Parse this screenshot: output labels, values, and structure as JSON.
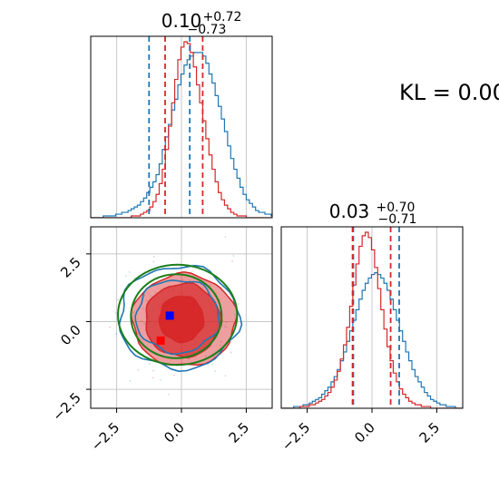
{
  "colors": {
    "series_a": "#1f77b4",
    "series_b": "#d62728",
    "overlay": "#1a7f1a",
    "marker_blue": "#0000ff",
    "marker_red": "#ff0000",
    "grid": "#c8c8c8"
  },
  "chart_data": [
    {
      "type": "histogram",
      "panel": "top-left marginal (param 1)",
      "title": {
        "value": "0.10",
        "plus": "+0.72",
        "minus": "−0.73"
      },
      "xlim": [
        -3.5,
        3.5
      ],
      "grid": true,
      "series": [
        {
          "color": "blue",
          "quantile_lines": [
            -1.25,
            0.32
          ],
          "bin_edges_start": -3.5,
          "bin_width": 0.12,
          "counts": [
            0,
            0,
            0,
            0,
            1,
            1,
            1,
            1,
            2,
            2,
            3,
            3,
            4,
            5,
            6,
            7,
            9,
            11,
            14,
            17,
            20,
            24,
            30,
            38,
            45,
            52,
            60,
            66,
            74,
            80,
            85,
            88,
            90,
            92,
            92,
            92,
            90,
            86,
            80,
            75,
            68,
            62,
            55,
            48,
            40,
            33,
            27,
            22,
            17,
            13,
            10,
            8,
            6,
            4,
            3,
            3,
            2,
            2,
            1,
            1
          ]
        },
        {
          "color": "red",
          "quantile_lines": [
            -0.63,
            0.82
          ],
          "bin_edges_start": -3.5,
          "bin_width": 0.12,
          "counts": [
            0,
            0,
            0,
            0,
            0,
            0,
            0,
            0,
            0,
            0,
            0,
            0,
            0,
            1,
            1,
            1,
            2,
            3,
            4,
            6,
            9,
            13,
            19,
            27,
            38,
            51,
            64,
            77,
            88,
            95,
            98,
            97,
            92,
            84,
            74,
            64,
            54,
            44,
            35,
            27,
            20,
            14,
            10,
            7,
            5,
            3,
            2,
            1,
            1,
            1,
            0,
            0,
            0,
            0,
            0,
            0,
            0,
            0,
            0,
            0
          ]
        }
      ]
    },
    {
      "type": "histogram",
      "panel": "bottom-right marginal (param 2)",
      "title": {
        "value": "0.03",
        "plus": "+0.70",
        "minus": "−0.71"
      },
      "xlim": [
        -3.5,
        3.5
      ],
      "xticks": [
        "−2.5",
        "0.0",
        "2.5"
      ],
      "grid": true,
      "series": [
        {
          "color": "blue",
          "quantile_lines": [
            -0.72,
            1.05
          ],
          "bin_edges_start": -3.5,
          "bin_width": 0.12,
          "counts": [
            0,
            0,
            0,
            0,
            1,
            1,
            1,
            2,
            2,
            3,
            4,
            5,
            6,
            8,
            10,
            12,
            15,
            18,
            22,
            27,
            32,
            38,
            44,
            50,
            56,
            62,
            67,
            71,
            74,
            76,
            77,
            76,
            74,
            71,
            67,
            62,
            56,
            50,
            44,
            38,
            32,
            27,
            22,
            18,
            15,
            12,
            9,
            7,
            5,
            4,
            3,
            2,
            2,
            1,
            1,
            1,
            0,
            0,
            0,
            0
          ]
        },
        {
          "color": "red",
          "quantile_lines": [
            -0.75,
            0.72
          ],
          "bin_edges_start": -3.5,
          "bin_width": 0.12,
          "counts": [
            0,
            0,
            0,
            0,
            0,
            0,
            1,
            1,
            1,
            2,
            2,
            3,
            4,
            5,
            7,
            9,
            12,
            16,
            21,
            28,
            36,
            46,
            58,
            70,
            82,
            92,
            98,
            100,
            97,
            90,
            80,
            68,
            56,
            45,
            35,
            27,
            20,
            15,
            11,
            8,
            6,
            4,
            3,
            2,
            2,
            1,
            1,
            1,
            0,
            0,
            0,
            0,
            0,
            0,
            0,
            0,
            0,
            0,
            0,
            0
          ]
        }
      ]
    },
    {
      "type": "contour",
      "panel": "bottom-left 2D (param 1 vs param 2)",
      "xlim": [
        -3.5,
        3.5
      ],
      "ylim": [
        -3.2,
        3.5
      ],
      "xticks": [
        "−2.5",
        "0.0",
        "2.5"
      ],
      "yticks": [
        "2.5",
        "0.0",
        "−2.5"
      ],
      "grid": true,
      "red_fill_contours": [
        {
          "cx": 0.1,
          "cy": 0.05,
          "rx": 2.0,
          "ry": 1.7,
          "opacity": 0.45
        },
        {
          "cx": 0.05,
          "cy": 0.05,
          "rx": 1.45,
          "ry": 1.35,
          "opacity": 0.7
        },
        {
          "cx": 0.0,
          "cy": 0.1,
          "rx": 0.85,
          "ry": 0.85,
          "opacity": 0.95
        }
      ],
      "blue_line_contours": [
        {
          "cx": -0.1,
          "cy": 0.15,
          "rx": 2.3,
          "ry": 1.9
        },
        {
          "cx": -0.15,
          "cy": 0.2,
          "rx": 1.6,
          "ry": 1.35
        }
      ],
      "green_overlay_ellipses": [
        {
          "cx": -0.15,
          "cy": 0.25,
          "rx": 2.3,
          "ry": 1.85
        },
        {
          "cx": -0.2,
          "cy": 0.2,
          "rx": 1.75,
          "ry": 1.55
        }
      ],
      "markers": [
        {
          "color": "blue",
          "x": -0.45,
          "y": 0.22
        },
        {
          "color": "red",
          "x": -0.8,
          "y": -0.7
        }
      ]
    }
  ],
  "annotation": {
    "text": "KL = 0.00"
  }
}
